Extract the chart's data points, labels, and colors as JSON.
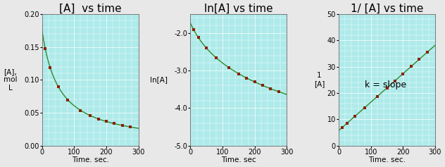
{
  "t_data": [
    10,
    25,
    50,
    80,
    120,
    150,
    175,
    200,
    225,
    250,
    275
  ],
  "A0": 0.175,
  "k": 0.108,
  "plot1": {
    "title": "[A]  vs time",
    "xlabel": "Time. sec.",
    "ylabel": "[A],\nmol\nL",
    "ylim": [
      0.0,
      0.2
    ],
    "yticks": [
      0.0,
      0.05,
      0.1,
      0.15,
      0.2
    ],
    "xticks": [
      0,
      100,
      200,
      300
    ]
  },
  "plot2": {
    "title": "ln[A] vs time",
    "xlabel": "Time. sec",
    "ylabel": "ln[A]",
    "ylim": [
      -5.0,
      -1.5
    ],
    "yticks": [
      -5.0,
      -4.0,
      -3.0,
      -2.0
    ],
    "xticks": [
      0,
      100,
      200,
      300
    ]
  },
  "plot3": {
    "title": "1/ [A] vs time",
    "xlabel": "Time. sec.",
    "ylabel": "1\n[A]",
    "ylim": [
      0,
      50
    ],
    "yticks": [
      0,
      10,
      20,
      30,
      40,
      50
    ],
    "xticks": [
      0,
      100,
      200,
      300
    ],
    "annotation": "k = slope",
    "ann_x": 80,
    "ann_y": 22
  },
  "fig_width": 6.32,
  "fig_height": 2.37,
  "dpi": 100,
  "bg_color": "#aeeaea",
  "fig_bg_color": "#e8e8e8",
  "line_color": "#2d8c2d",
  "dot_color": "#8B2000",
  "title_fontsize": 11,
  "label_fontsize": 7.5,
  "tick_fontsize": 7,
  "ann_fontsize": 9,
  "grid_color": "#ffffff",
  "grid_linewidth": 0.5,
  "line_linewidth": 1.0,
  "marker_size": 2.8
}
